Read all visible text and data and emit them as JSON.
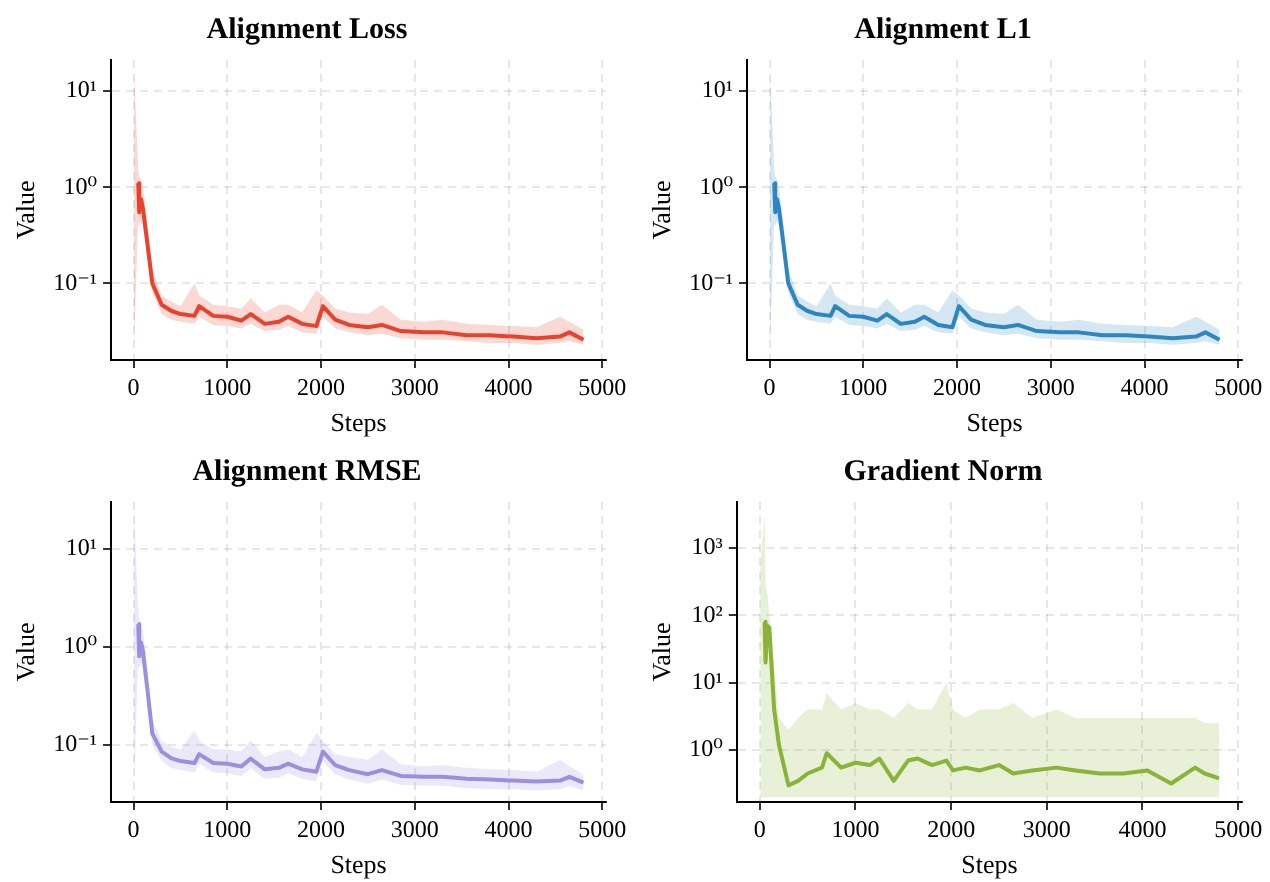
{
  "chart_data": [
    {
      "type": "line",
      "title": "Alignment Loss",
      "xlabel": "Steps",
      "ylabel": "Value",
      "log": "y",
      "grid": true,
      "legend": false,
      "marker": "none",
      "line_style": "solid",
      "xlim": [
        -240,
        5040
      ],
      "xticks": [
        0,
        1000,
        2000,
        3000,
        4000,
        5000
      ],
      "ylim": [
        0.016,
        21
      ],
      "yticks": [
        {
          "value": 0.1,
          "label": "10⁻¹"
        },
        {
          "value": 1,
          "label": "10⁰"
        },
        {
          "value": 10,
          "label": "10¹"
        }
      ],
      "series": [
        {
          "color": "#e8432e",
          "x": [
            5,
            50,
            60,
            80,
            100,
            150,
            200,
            300,
            400,
            500,
            650,
            700,
            850,
            1000,
            1150,
            1250,
            1400,
            1550,
            1650,
            1800,
            1950,
            2020,
            2150,
            2300,
            2500,
            2650,
            2850,
            3100,
            3300,
            3550,
            3800,
            4050,
            4300,
            4550,
            4650,
            4800
          ],
          "values": [
            null,
            1.1,
            0.55,
            0.75,
            0.6,
            0.25,
            0.1,
            0.06,
            0.052,
            0.048,
            0.046,
            0.058,
            0.046,
            0.045,
            0.041,
            0.048,
            0.038,
            0.04,
            0.045,
            0.038,
            0.036,
            0.058,
            0.042,
            0.037,
            0.035,
            0.037,
            0.032,
            0.031,
            0.031,
            0.029,
            0.029,
            0.028,
            0.027,
            0.028,
            0.031,
            0.026
          ],
          "lower": [
            0.022,
            0.5,
            0.4,
            0.45,
            0.4,
            0.18,
            0.08,
            0.048,
            0.042,
            0.04,
            0.038,
            0.045,
            0.037,
            0.036,
            0.034,
            0.038,
            0.032,
            0.033,
            0.036,
            0.031,
            0.03,
            0.045,
            0.034,
            0.031,
            0.029,
            0.03,
            0.027,
            0.026,
            0.026,
            0.025,
            0.024,
            0.024,
            0.023,
            0.024,
            0.025,
            0.023
          ],
          "upper": [
            16,
            1.6,
            1.3,
            1.2,
            1.0,
            0.4,
            0.14,
            0.075,
            0.065,
            0.058,
            0.1,
            0.075,
            0.06,
            0.058,
            0.055,
            0.07,
            0.05,
            0.06,
            0.06,
            0.05,
            0.085,
            0.075,
            0.055,
            0.05,
            0.048,
            0.06,
            0.042,
            0.04,
            0.042,
            0.038,
            0.037,
            0.036,
            0.035,
            0.045,
            0.04,
            0.033
          ]
        }
      ]
    },
    {
      "type": "line",
      "title": "Alignment L1",
      "xlabel": "Steps",
      "ylabel": "Value",
      "log": "y",
      "grid": true,
      "legend": false,
      "marker": "none",
      "line_style": "solid",
      "xlim": [
        -240,
        5040
      ],
      "xticks": [
        0,
        1000,
        2000,
        3000,
        4000,
        5000
      ],
      "ylim": [
        0.016,
        21
      ],
      "yticks": [
        {
          "value": 0.1,
          "label": "10⁻¹"
        },
        {
          "value": 1,
          "label": "10⁰"
        },
        {
          "value": 10,
          "label": "10¹"
        }
      ],
      "series": [
        {
          "color": "#2e86c1",
          "x": [
            5,
            50,
            60,
            80,
            100,
            150,
            200,
            300,
            400,
            500,
            650,
            700,
            850,
            1000,
            1150,
            1250,
            1400,
            1550,
            1650,
            1800,
            1950,
            2020,
            2150,
            2300,
            2500,
            2650,
            2850,
            3100,
            3300,
            3550,
            3800,
            4050,
            4300,
            4550,
            4650,
            4800
          ],
          "values": [
            null,
            1.1,
            0.55,
            0.75,
            0.6,
            0.25,
            0.1,
            0.06,
            0.052,
            0.048,
            0.046,
            0.058,
            0.046,
            0.045,
            0.041,
            0.048,
            0.038,
            0.04,
            0.045,
            0.037,
            0.035,
            0.058,
            0.042,
            0.037,
            0.035,
            0.037,
            0.032,
            0.031,
            0.031,
            0.029,
            0.029,
            0.028,
            0.027,
            0.028,
            0.031,
            0.026
          ],
          "lower": [
            0.022,
            0.5,
            0.4,
            0.45,
            0.4,
            0.18,
            0.08,
            0.048,
            0.042,
            0.04,
            0.038,
            0.045,
            0.037,
            0.036,
            0.034,
            0.038,
            0.032,
            0.033,
            0.036,
            0.031,
            0.03,
            0.045,
            0.034,
            0.031,
            0.029,
            0.03,
            0.027,
            0.026,
            0.026,
            0.025,
            0.024,
            0.024,
            0.023,
            0.024,
            0.025,
            0.023
          ],
          "upper": [
            16,
            1.6,
            1.3,
            1.2,
            1.0,
            0.4,
            0.14,
            0.075,
            0.065,
            0.058,
            0.1,
            0.075,
            0.06,
            0.058,
            0.055,
            0.07,
            0.05,
            0.06,
            0.06,
            0.05,
            0.085,
            0.075,
            0.055,
            0.05,
            0.048,
            0.06,
            0.042,
            0.04,
            0.042,
            0.038,
            0.037,
            0.036,
            0.035,
            0.045,
            0.04,
            0.033
          ]
        }
      ]
    },
    {
      "type": "line",
      "title": "Alignment RMSE",
      "xlabel": "Steps",
      "ylabel": "Value",
      "log": "y",
      "grid": true,
      "legend": false,
      "marker": "none",
      "line_style": "solid",
      "xlim": [
        -240,
        5040
      ],
      "xticks": [
        0,
        1000,
        2000,
        3000,
        4000,
        5000
      ],
      "ylim": [
        0.026,
        30
      ],
      "yticks": [
        {
          "value": 0.1,
          "label": "10⁻¹"
        },
        {
          "value": 1,
          "label": "10⁰"
        },
        {
          "value": 10,
          "label": "10¹"
        }
      ],
      "series": [
        {
          "color": "#9b8fe0",
          "x": [
            5,
            50,
            60,
            80,
            100,
            150,
            200,
            300,
            400,
            500,
            650,
            700,
            850,
            1000,
            1150,
            1250,
            1400,
            1550,
            1650,
            1800,
            1950,
            2020,
            2150,
            2300,
            2500,
            2650,
            2850,
            3100,
            3300,
            3550,
            3800,
            4050,
            4300,
            4550,
            4650,
            4800
          ],
          "values": [
            null,
            1.7,
            0.8,
            1.1,
            0.9,
            0.35,
            0.13,
            0.085,
            0.073,
            0.068,
            0.065,
            0.08,
            0.065,
            0.064,
            0.06,
            0.072,
            0.056,
            0.058,
            0.064,
            0.056,
            0.053,
            0.085,
            0.062,
            0.055,
            0.05,
            0.055,
            0.048,
            0.047,
            0.047,
            0.045,
            0.044,
            0.043,
            0.042,
            0.043,
            0.047,
            0.041
          ],
          "lower": [
            0.035,
            0.8,
            0.6,
            0.7,
            0.6,
            0.26,
            0.1,
            0.068,
            0.058,
            0.055,
            0.052,
            0.064,
            0.052,
            0.051,
            0.048,
            0.057,
            0.045,
            0.046,
            0.051,
            0.045,
            0.042,
            0.068,
            0.05,
            0.044,
            0.04,
            0.044,
            0.039,
            0.038,
            0.038,
            0.036,
            0.035,
            0.035,
            0.034,
            0.035,
            0.038,
            0.034
          ],
          "upper": [
            25,
            2.4,
            1.9,
            1.8,
            1.5,
            0.55,
            0.18,
            0.11,
            0.095,
            0.088,
            0.14,
            0.11,
            0.09,
            0.09,
            0.085,
            0.11,
            0.075,
            0.085,
            0.09,
            0.075,
            0.13,
            0.11,
            0.08,
            0.075,
            0.07,
            0.09,
            0.063,
            0.06,
            0.062,
            0.058,
            0.056,
            0.055,
            0.053,
            0.07,
            0.06,
            0.05
          ]
        }
      ]
    },
    {
      "type": "line",
      "title": "Gradient Norm",
      "xlabel": "Steps",
      "ylabel": "Value",
      "log": "y",
      "grid": true,
      "legend": false,
      "marker": "none",
      "line_style": "solid",
      "xlim": [
        -240,
        5040
      ],
      "xticks": [
        0,
        1000,
        2000,
        3000,
        4000,
        5000
      ],
      "ylim": [
        0.17,
        4800
      ],
      "yticks": [
        {
          "value": 1,
          "label": "10⁰"
        },
        {
          "value": 10,
          "label": "10¹"
        },
        {
          "value": 100,
          "label": "10²"
        },
        {
          "value": 1000,
          "label": "10³"
        }
      ],
      "series": [
        {
          "color": "#8ab33a",
          "x": [
            5,
            50,
            60,
            80,
            100,
            150,
            200,
            300,
            400,
            500,
            650,
            700,
            850,
            1000,
            1150,
            1250,
            1400,
            1550,
            1650,
            1800,
            1950,
            2020,
            2150,
            2300,
            2500,
            2650,
            2850,
            3100,
            3300,
            3550,
            3800,
            4050,
            4300,
            4550,
            4650,
            4800
          ],
          "values": [
            null,
            80,
            20,
            70,
            65,
            4,
            1.2,
            0.3,
            0.35,
            0.45,
            0.55,
            0.9,
            0.55,
            0.65,
            0.6,
            0.75,
            0.35,
            0.7,
            0.75,
            0.6,
            0.7,
            0.5,
            0.55,
            0.5,
            0.6,
            0.45,
            0.5,
            0.55,
            0.5,
            0.45,
            0.45,
            0.5,
            0.32,
            0.55,
            0.45,
            0.38
          ],
          "lower": [
            0.2,
            0.2,
            0.2,
            0.2,
            0.2,
            0.2,
            0.2,
            0.2,
            0.2,
            0.2,
            0.2,
            0.2,
            0.2,
            0.2,
            0.2,
            0.2,
            0.2,
            0.2,
            0.2,
            0.2,
            0.2,
            0.2,
            0.2,
            0.2,
            0.2,
            0.2,
            0.2,
            0.2,
            0.2,
            0.2,
            0.2,
            0.2,
            0.2,
            0.2,
            0.2,
            0.2
          ],
          "upper": [
            600,
            3000,
            300,
            200,
            100,
            20,
            3,
            2,
            3,
            4,
            4,
            7,
            4,
            5,
            4,
            4,
            3,
            5,
            4,
            4,
            10,
            4,
            3,
            4,
            4,
            5,
            3,
            4,
            3,
            3,
            3,
            3,
            3,
            3,
            2.5,
            2.5
          ]
        }
      ]
    }
  ]
}
